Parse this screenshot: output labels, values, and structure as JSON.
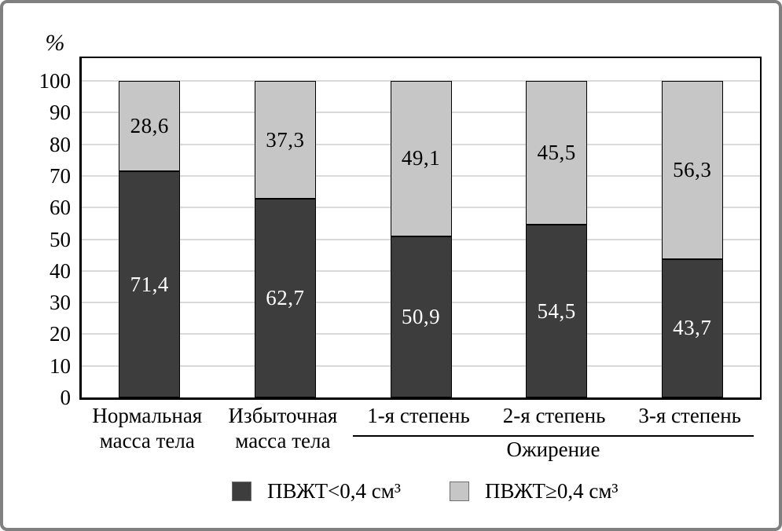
{
  "frame": {
    "background": "#ffffff",
    "border_color": "#808080"
  },
  "chart_data": {
    "type": "bar",
    "stacked": true,
    "title": "",
    "ylabel": "%",
    "ylim": [
      0,
      100
    ],
    "yticks": [
      0,
      10,
      20,
      30,
      40,
      50,
      60,
      70,
      80,
      90,
      100
    ],
    "grid": true,
    "gridline_color": "#d9d9d9",
    "axis_color": "#000000",
    "decimal_separator": ",",
    "categories": [
      "Нормальная масса тела",
      "Избыточная масса тела",
      "1-я степень",
      "2-я степень",
      "3-я степень"
    ],
    "x_tick_lines": [
      [
        "Нормальная",
        "масса тела"
      ],
      [
        "Избыточная",
        "масса тела"
      ],
      [
        "1-я степень"
      ],
      [
        "2-я степень"
      ],
      [
        "3-я степень"
      ]
    ],
    "category_group": {
      "label": "Ожирение",
      "members": [
        "1-я степень",
        "2-я степень",
        "3-я степень"
      ]
    },
    "series": [
      {
        "name": "ПВЖТ<0,4 см³",
        "color": "#3d3d3d",
        "text_color": "#ffffff",
        "values": [
          71.4,
          62.7,
          50.9,
          54.5,
          43.7
        ]
      },
      {
        "name": "ПВЖТ≥0,4 см³",
        "color": "#c6c6c6",
        "text_color": "#000000",
        "values": [
          28.6,
          37.3,
          49.1,
          45.5,
          56.3
        ]
      }
    ],
    "legend_position": "bottom"
  }
}
